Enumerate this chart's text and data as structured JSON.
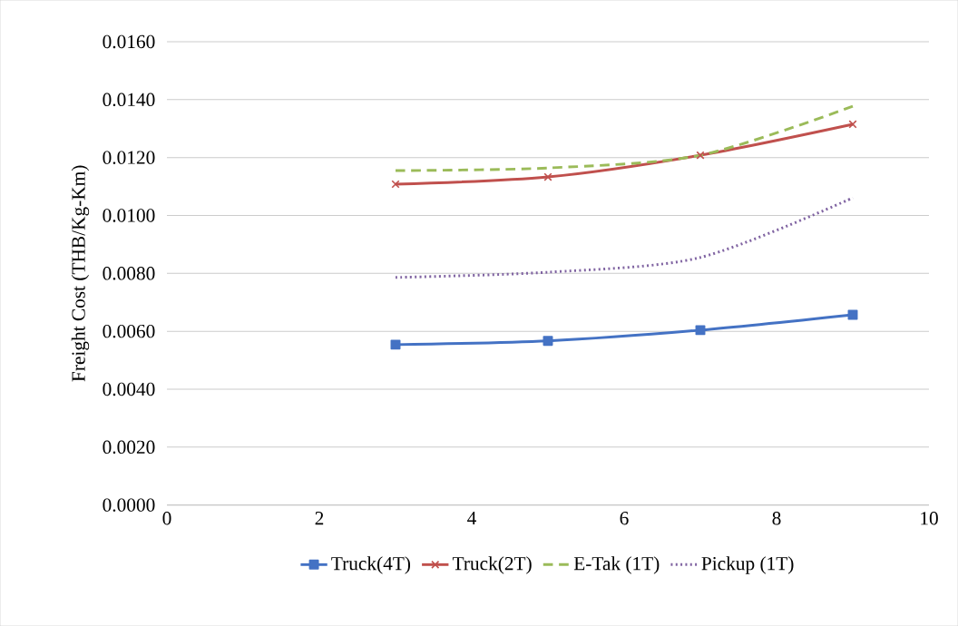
{
  "chart_data": {
    "type": "line",
    "ylabel": "Freight Cost (THB/Kg-Km)",
    "x": [
      3,
      5,
      7,
      9
    ],
    "series": [
      {
        "name": "Truck(4T)",
        "color": "#4472c4",
        "values": [
          0.00554,
          0.00567,
          0.00604,
          0.00657
        ],
        "marker": "square",
        "line_style": "solid"
      },
      {
        "name": "Truck(2T)",
        "color": "#c0504d",
        "values": [
          0.01108,
          0.01133,
          0.01208,
          0.01315
        ],
        "marker": "cross",
        "line_style": "solid"
      },
      {
        "name": "E-Tak (1T)",
        "color": "#9bbb59",
        "values": [
          0.01155,
          0.01164,
          0.01208,
          0.01377
        ],
        "marker": "none",
        "line_style": "dashed"
      },
      {
        "name": "Pickup (1T)",
        "color": "#8064a2",
        "values": [
          0.00786,
          0.00804,
          0.00855,
          0.01061
        ],
        "marker": "none",
        "line_style": "dotted"
      }
    ],
    "xlim": [
      0,
      10
    ],
    "xticks": [
      0,
      2,
      4,
      6,
      8,
      10
    ],
    "ylim": [
      0,
      0.016
    ],
    "yticks": [
      {
        "value": 0,
        "label": "0.0000"
      },
      {
        "value": 0.002,
        "label": "0.0020"
      },
      {
        "value": 0.004,
        "label": "0.0040"
      },
      {
        "value": 0.006,
        "label": "0.0060"
      },
      {
        "value": 0.008,
        "label": "0.0080"
      },
      {
        "value": 0.01,
        "label": "0.0100"
      },
      {
        "value": 0.012,
        "label": "0.0120"
      },
      {
        "value": 0.014,
        "label": "0.0140"
      },
      {
        "value": 0.016,
        "label": "0.0160"
      }
    ],
    "grid": "y",
    "legend": "bottom"
  }
}
